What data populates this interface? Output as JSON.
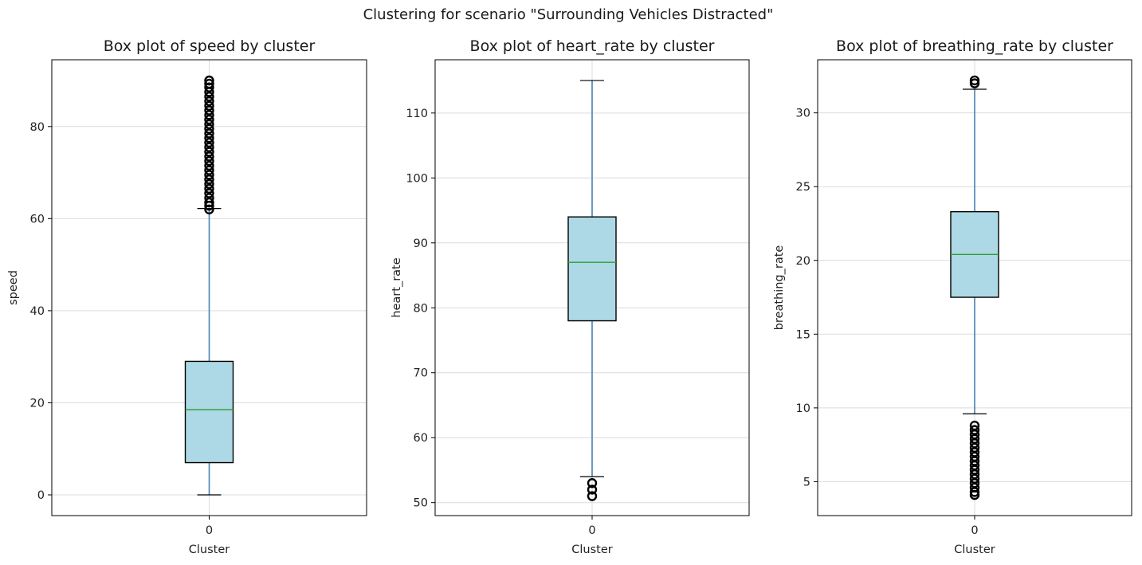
{
  "chart_data": {
    "title": "Clustering for scenario \"Surrounding Vehicles Distracted\"",
    "colors": {
      "box_fill": "#add8e6",
      "box_edge": "#000000",
      "whisker": "#4682b4",
      "median": "#2ca02c",
      "flier": "#000000",
      "grid": "#dcdcdc"
    },
    "charts": [
      {
        "type": "boxplot",
        "title": "Box plot of speed by cluster",
        "xlabel": "Cluster",
        "ylabel": "speed",
        "categories": [
          "0"
        ],
        "ylim": [
          -4.5,
          94.5
        ],
        "yticks": [
          0,
          20,
          40,
          60,
          80
        ],
        "grid": true,
        "boxes": [
          {
            "category": "0",
            "whislo": 0,
            "q1": 7,
            "med": 18.5,
            "q3": 29,
            "whishi": 62.2,
            "fliers": [
              62,
              62.8,
              63.5,
              64.5,
              65.5,
              66.5,
              67.5,
              68.5,
              69.5,
              70.5,
              71.5,
              72.5,
              73.5,
              74.5,
              75.5,
              76.5,
              77.5,
              78.5,
              79.5,
              80.5,
              81.5,
              82.5,
              83.5,
              84.5,
              85.5,
              86.5,
              87.5,
              88.5,
              89.3,
              90
            ]
          }
        ]
      },
      {
        "type": "boxplot",
        "title": "Box plot of heart_rate by cluster",
        "xlabel": "Cluster",
        "ylabel": "heart_rate",
        "categories": [
          "0"
        ],
        "ylim": [
          48,
          118.2
        ],
        "yticks": [
          50,
          60,
          70,
          80,
          90,
          100,
          110
        ],
        "grid": true,
        "boxes": [
          {
            "category": "0",
            "whislo": 54,
            "q1": 78,
            "med": 87,
            "q3": 94,
            "whishi": 115,
            "fliers": [
              51,
              52,
              53
            ]
          }
        ]
      },
      {
        "type": "boxplot",
        "title": "Box plot of breathing_rate by cluster",
        "xlabel": "Cluster",
        "ylabel": "breathing_rate",
        "categories": [
          "0"
        ],
        "ylim": [
          2.7,
          33.6
        ],
        "yticks": [
          5,
          10,
          15,
          20,
          25,
          30
        ],
        "grid": true,
        "boxes": [
          {
            "category": "0",
            "whislo": 9.6,
            "q1": 17.5,
            "med": 20.4,
            "q3": 23.3,
            "whishi": 31.6,
            "fliers": [
              4.1,
              4.3,
              4.6,
              4.9,
              5.2,
              5.5,
              5.8,
              6.1,
              6.4,
              6.7,
              7.0,
              7.3,
              7.6,
              7.9,
              8.2,
              8.5,
              8.8,
              32.0,
              32.2
            ]
          }
        ]
      }
    ]
  }
}
